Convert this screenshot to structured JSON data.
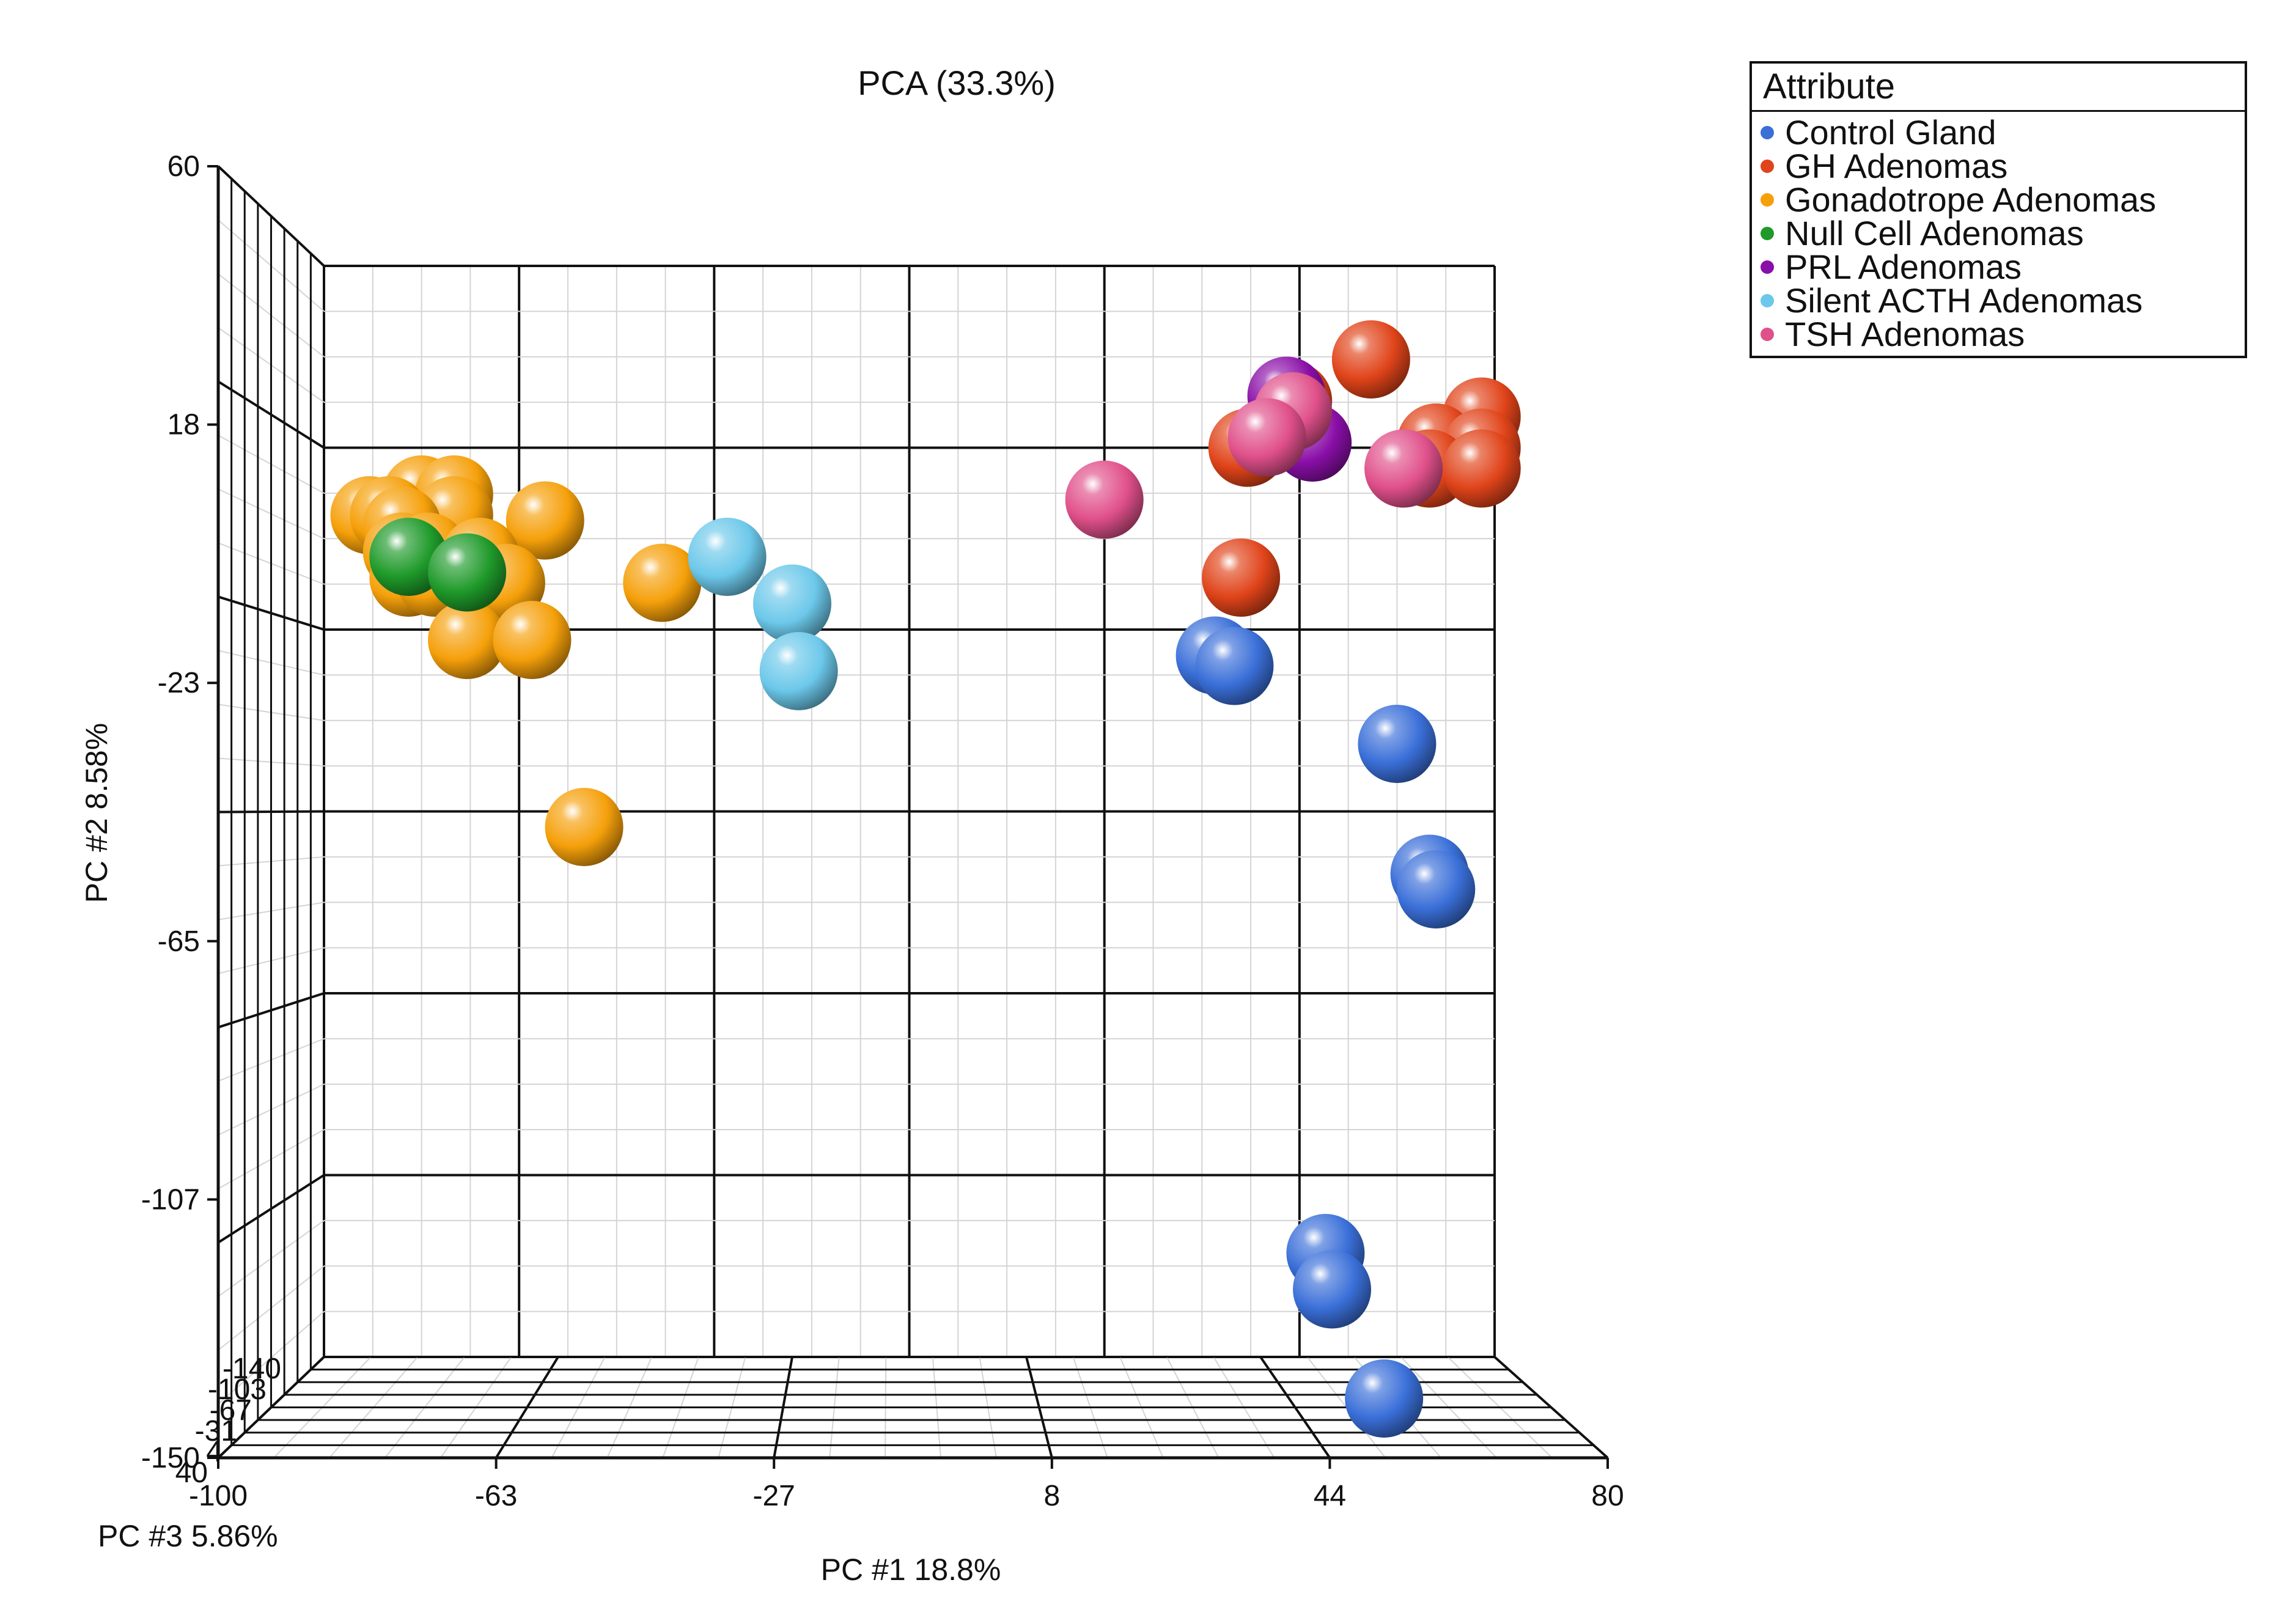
{
  "chart_data": {
    "type": "scatter",
    "title": "PCA (33.3%)",
    "xlabel": "PC #1 18.8%",
    "ylabel": "PC #2 8.58%",
    "zlabel": "PC #3 5.86%",
    "xlim": [
      -100,
      80
    ],
    "ylim": [
      -150,
      60
    ],
    "x_ticks": [
      "-100",
      "-63",
      "-27",
      "8",
      "44",
      "80"
    ],
    "y_ticks": [
      "60",
      "18",
      "-23",
      "-65",
      "-107",
      "-150"
    ],
    "z_ticks": [
      "40",
      "4",
      "-31",
      "-67",
      "-103",
      "-140"
    ],
    "legend_title": "Attribute",
    "series": [
      {
        "name": "Control Gland",
        "color": "#3a6fd8",
        "points": [
          [
            37,
            -15
          ],
          [
            40,
            -17
          ],
          [
            65,
            -32
          ],
          [
            70,
            -57
          ],
          [
            71,
            -60
          ],
          [
            54,
            -130
          ],
          [
            55,
            -137
          ],
          [
            63,
            -158
          ]
        ]
      },
      {
        "name": "GH Adenomas",
        "color": "#e0441a",
        "points": [
          [
            61,
            42
          ],
          [
            78,
            31
          ],
          [
            49,
            34
          ],
          [
            42,
            25
          ],
          [
            71,
            26
          ],
          [
            78,
            25
          ],
          [
            70,
            21
          ],
          [
            78,
            21
          ],
          [
            41,
            0
          ]
        ]
      },
      {
        "name": "Gonadotrope Adenomas",
        "color": "#f5a00a",
        "points": [
          [
            -85,
            16
          ],
          [
            -80,
            16
          ],
          [
            -93,
            12
          ],
          [
            -90,
            12
          ],
          [
            -80,
            12
          ],
          [
            -66,
            11
          ],
          [
            -88,
            10
          ],
          [
            -88,
            5
          ],
          [
            -84,
            5
          ],
          [
            -76,
            4
          ],
          [
            -72,
            -1
          ],
          [
            -87,
            0
          ],
          [
            -83,
            0
          ],
          [
            -48,
            -1
          ],
          [
            -78,
            -12
          ],
          [
            -68,
            -12
          ],
          [
            -60,
            -48
          ]
        ]
      },
      {
        "name": "Null Cell Adenomas",
        "color": "#1f9a2a",
        "points": [
          [
            -87,
            4
          ],
          [
            -78,
            1
          ]
        ]
      },
      {
        "name": "PRL Adenomas",
        "color": "#8a0fa8",
        "points": [
          [
            48,
            35
          ],
          [
            52,
            26
          ]
        ]
      },
      {
        "name": "Silent ACTH Adenomas",
        "color": "#6cc8ea",
        "points": [
          [
            -38,
            4
          ],
          [
            -28,
            -5
          ],
          [
            -27,
            -18
          ]
        ]
      },
      {
        "name": "TSH Adenomas",
        "color": "#e0508a",
        "points": [
          [
            49,
            32
          ],
          [
            45,
            27
          ],
          [
            66,
            21
          ],
          [
            20,
            15
          ]
        ]
      }
    ]
  }
}
